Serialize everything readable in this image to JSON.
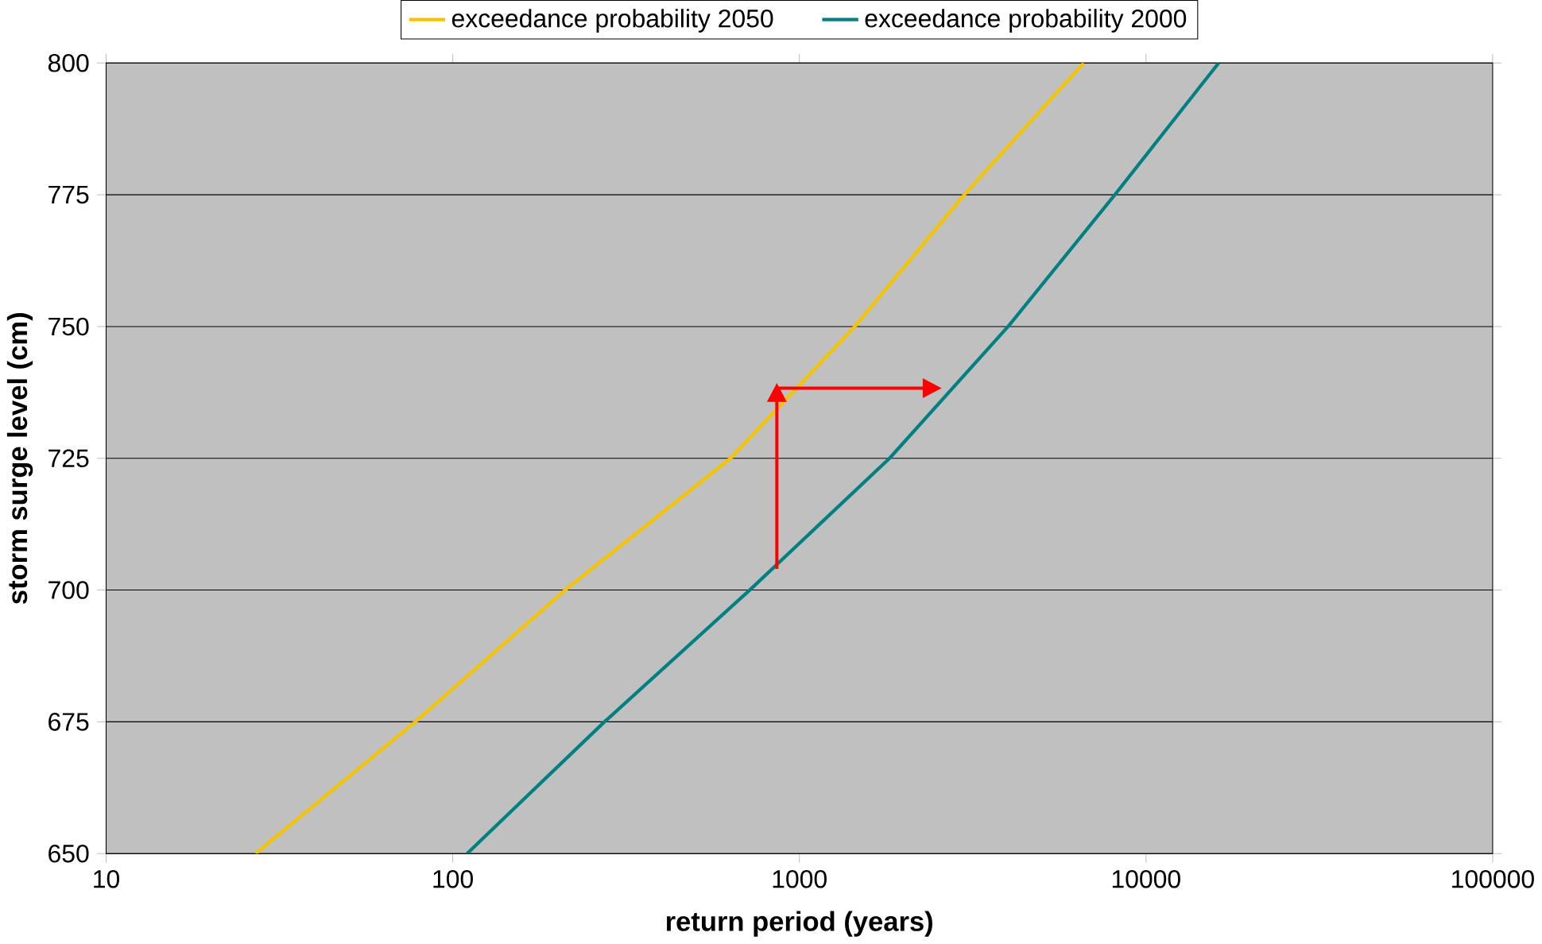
{
  "chart_data": {
    "type": "line",
    "xlabel": "return period (years)",
    "ylabel": "storm surge level (cm)",
    "log": "x",
    "xlim": [
      10,
      100000
    ],
    "xticks": [
      10,
      100,
      1000,
      10000,
      100000
    ],
    "ylim": [
      650,
      800
    ],
    "yticks": [
      650,
      675,
      700,
      725,
      750,
      775,
      800
    ],
    "grid": "y",
    "legend": "top",
    "series": [
      {
        "name": "exceedance probability 2050",
        "color": "#f5c400",
        "x": [
          27,
          78,
          211,
          633,
          1445,
          2990,
          6610
        ],
        "values": [
          650,
          675,
          700,
          725,
          750,
          775,
          800
        ]
      },
      {
        "name": "exceedance probability 2000",
        "color": "#008080",
        "x": [
          110,
          274,
          719,
          1820,
          4000,
          8130,
          16200
        ],
        "values": [
          650,
          675,
          700,
          725,
          750,
          775,
          800
        ]
      }
    ]
  }
}
